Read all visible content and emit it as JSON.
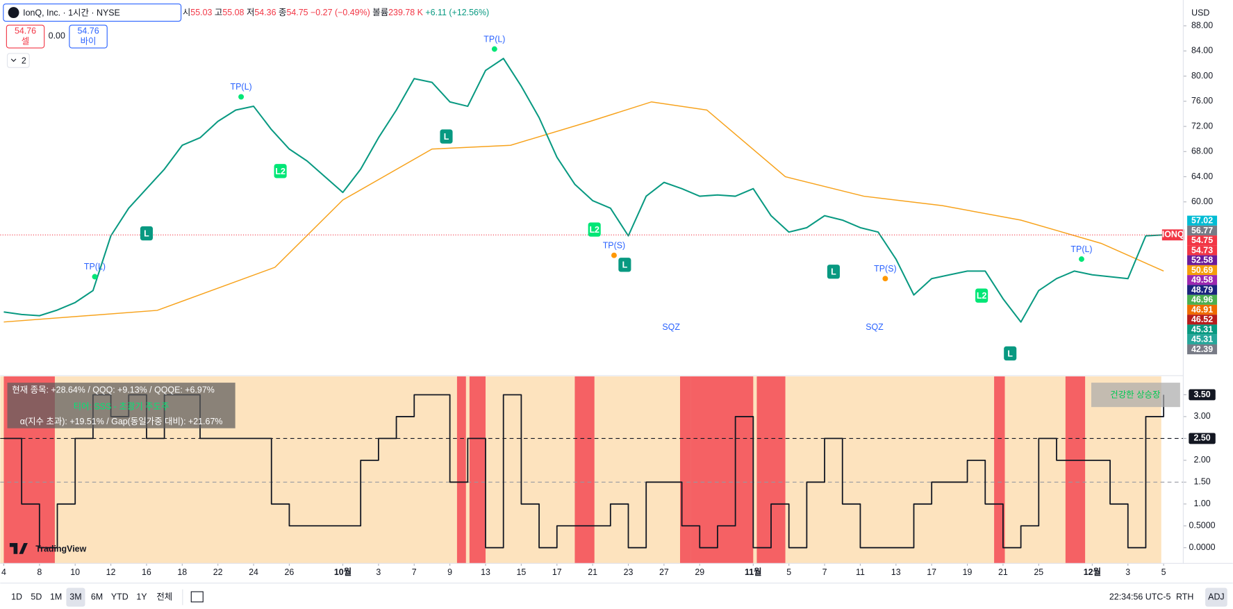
{
  "header": {
    "symbol": "IonQ, Inc. · 1시간 · NYSE",
    "ohlc": [
      {
        "k": "시",
        "v": "55.03"
      },
      {
        "k": "고",
        "v": "55.08"
      },
      {
        "k": "저",
        "v": "54.36"
      },
      {
        "k": "종",
        "v": "54.75"
      }
    ],
    "change": "−0.27 (−0.49%)",
    "volume_label": "볼륨",
    "volume": "239.78 K",
    "gain": "+6.11 (+12.56%)"
  },
  "trade": {
    "sell_price": "54.76",
    "sell": "셀",
    "spread": "0.00",
    "buy_price": "54.76",
    "buy": "바이"
  },
  "indicators_count": "2",
  "currency": "USD",
  "logo": "TradingView",
  "toolbar": {
    "ranges": [
      "1D",
      "5D",
      "1M",
      "3M",
      "6M",
      "YTD",
      "1Y",
      "전체"
    ],
    "active": "3M",
    "time": "22:34:56 UTC-5",
    "session": "RTH",
    "adj": "ADJ"
  },
  "chart_data": [
    {
      "type": "line",
      "symbol_tag": "IONQ",
      "color": "#089981",
      "last_price_line": true,
      "x": [
        0,
        1,
        2,
        3,
        4,
        5,
        6,
        7,
        8,
        9,
        10,
        11,
        12,
        13,
        14,
        15,
        16,
        17,
        18,
        19,
        20,
        21,
        22,
        23,
        24,
        25,
        26,
        27,
        28,
        29,
        30,
        31,
        32,
        33,
        34,
        35,
        36,
        37,
        38,
        39,
        40,
        41,
        42,
        43,
        44,
        45,
        46,
        47,
        48,
        49,
        50,
        51,
        52,
        53,
        54,
        55,
        56,
        57,
        58,
        59,
        60,
        61,
        62,
        63,
        64,
        65
      ],
      "values": [
        42.5,
        42.1,
        41.9,
        42.8,
        44,
        45.9,
        54.6,
        59,
        62.1,
        65.2,
        69,
        70.2,
        72.8,
        74.6,
        75.2,
        71.5,
        68.4,
        66.5,
        64,
        61.5,
        65.2,
        70.2,
        74.6,
        79.6,
        79,
        75.9,
        75.2,
        80.9,
        82.8,
        78.4,
        73.4,
        67.1,
        62.8,
        60.2,
        59,
        54.6,
        60.9,
        63.1,
        62.1,
        60.9,
        61.1,
        60.9,
        62.1,
        57.8,
        55.2,
        55.9,
        57.8,
        57.1,
        55.9,
        55.2,
        50.9,
        45.2,
        47.8,
        48.4,
        49,
        49,
        44.6,
        40.9,
        45.9,
        47.8,
        49,
        48.4,
        48.1,
        47.8,
        54.6,
        54.75
      ],
      "ma_x": [
        0,
        8.6,
        15.2,
        19,
        24,
        28.4,
        32.8,
        36.3,
        39.4,
        43.8,
        48.2,
        52.6,
        57,
        61.5,
        65
      ],
      "ma_values": [
        40.9,
        42.75,
        49.6,
        60.3,
        68.4,
        69,
        72.75,
        75.9,
        74.6,
        64,
        60.9,
        59.4,
        57.1,
        53.4,
        49
      ],
      "ma_color": "#f7a21b",
      "xlim": [
        -0.2,
        66.1
      ],
      "ylim": [
        32.5,
        92.1
      ],
      "yticks": [
        {
          "value": 60,
          "label": "60.00"
        },
        {
          "value": 64,
          "label": "64.00"
        },
        {
          "value": 68,
          "label": "68.00"
        },
        {
          "value": 72,
          "label": "72.00"
        },
        {
          "value": 76,
          "label": "76.00"
        },
        {
          "value": 80,
          "label": "80.00"
        },
        {
          "value": 84,
          "label": "84.00"
        },
        {
          "value": 88,
          "label": "88.00"
        }
      ],
      "price_markers": [
        {
          "value": 57.02,
          "color": "#00bcd4"
        },
        {
          "value": 56.77,
          "color": "#787b86"
        },
        {
          "value": 54.75,
          "color": "#f23645"
        },
        {
          "value": 54.73,
          "color": "#f23645"
        },
        {
          "value": 52.58,
          "color": "#6a1b9a"
        },
        {
          "value": 50.69,
          "color": "#f59e0b"
        },
        {
          "value": 49.58,
          "color": "#9c27b0"
        },
        {
          "value": 48.79,
          "color": "#1a237e"
        },
        {
          "value": 46.96,
          "color": "#4caf50"
        },
        {
          "value": 46.91,
          "color": "#ef6c00"
        },
        {
          "value": 46.52,
          "color": "#b71c1c"
        },
        {
          "value": 45.31,
          "color": "#089981"
        },
        {
          "value": 45.31,
          "color": "#26a69a"
        },
        {
          "value": 42.39,
          "color": "#787b86"
        }
      ],
      "signals": [
        {
          "x": 5.1,
          "value": 49.6,
          "label": "TP(L)",
          "shape": "text",
          "color": "#2962ff",
          "dot": "#00e676"
        },
        {
          "x": 13.3,
          "value": 78.2,
          "label": "TP(L)",
          "shape": "text",
          "color": "#2962ff",
          "dot": "#00e676"
        },
        {
          "x": 27.5,
          "value": 85.8,
          "label": "TP(L)",
          "shape": "text",
          "color": "#2962ff",
          "dot": "#00e676"
        },
        {
          "x": 60.4,
          "value": 52.4,
          "label": "TP(L)",
          "shape": "text",
          "color": "#2962ff",
          "dot": "#00e676"
        },
        {
          "x": 34.2,
          "value": 53,
          "label": "TP(S)",
          "shape": "text",
          "color": "#2962ff",
          "dot": "#ff9800"
        },
        {
          "x": 49.4,
          "value": 49.3,
          "label": "TP(S)",
          "shape": "text",
          "color": "#2962ff",
          "dot": "#ff9800"
        },
        {
          "x": 8,
          "value": 55,
          "label": "L",
          "shape": "badge",
          "color": "#089981"
        },
        {
          "x": 24.8,
          "value": 70.4,
          "label": "L",
          "shape": "badge",
          "color": "#089981"
        },
        {
          "x": 34.8,
          "value": 50,
          "label": "L",
          "shape": "badge",
          "color": "#089981"
        },
        {
          "x": 46.5,
          "value": 48.9,
          "label": "L",
          "shape": "badge",
          "color": "#089981"
        },
        {
          "x": 56.4,
          "value": 35.9,
          "label": "L",
          "shape": "badge",
          "color": "#089981"
        },
        {
          "x": 15.5,
          "value": 64.9,
          "label": "L2",
          "shape": "badge",
          "color": "#00e676"
        },
        {
          "x": 33.1,
          "value": 55.6,
          "label": "L2",
          "shape": "badge",
          "color": "#00e676"
        },
        {
          "x": 54.8,
          "value": 45.1,
          "label": "L2",
          "shape": "badge",
          "color": "#00e676"
        },
        {
          "x": 37.4,
          "value": 40,
          "label": "SQZ",
          "shape": "text",
          "color": "#2962ff"
        },
        {
          "x": 48.8,
          "value": 40,
          "label": "SQZ",
          "shape": "text",
          "color": "#2962ff"
        }
      ]
    },
    {
      "type": "line",
      "step": true,
      "color": "#131722",
      "background": "#fde3be",
      "shade_color": "#f23645",
      "x": [
        0,
        1,
        2,
        3,
        4,
        5,
        6,
        7,
        8,
        9,
        10,
        11,
        12,
        13,
        14,
        15,
        16,
        17,
        18,
        19,
        20,
        21,
        22,
        23,
        24,
        25,
        26,
        27,
        28,
        29,
        30,
        31,
        32,
        33,
        34,
        35,
        36,
        37,
        38,
        39,
        40,
        41,
        42,
        43,
        44,
        45,
        46,
        47,
        48,
        49,
        50,
        51,
        52,
        53,
        54,
        55,
        56,
        57,
        58,
        59,
        60,
        61,
        62,
        63,
        64,
        65
      ],
      "values": [
        2.5,
        1,
        0,
        1,
        2.5,
        3.5,
        3,
        3.5,
        2.5,
        3.5,
        3.5,
        2.5,
        2.5,
        2.5,
        2.5,
        1,
        0.5,
        0.5,
        0.5,
        0.5,
        2,
        2.5,
        3,
        3.5,
        3.5,
        1.5,
        2.5,
        0,
        3.5,
        1,
        0,
        0.5,
        0.5,
        0.5,
        1,
        0,
        1.5,
        1.5,
        0.5,
        0,
        0.5,
        3,
        0,
        1,
        0,
        1.5,
        2.5,
        1,
        0,
        0,
        0,
        1,
        1.5,
        1.5,
        2,
        1,
        0,
        0.5,
        2.5,
        2,
        2,
        2,
        1,
        0,
        3,
        3.5
      ],
      "shaded_ranges": [
        [
          0,
          2.86
        ],
        [
          25.4,
          25.9
        ],
        [
          26.1,
          27
        ],
        [
          32,
          33.1
        ],
        [
          37.9,
          38.5
        ],
        [
          38.5,
          42
        ],
        [
          42.2,
          43.8
        ],
        [
          55.5,
          56.1
        ],
        [
          59.5,
          60.6
        ]
      ],
      "reference_lines": [
        {
          "value": 2.5,
          "color": "#131722"
        },
        {
          "value": 1.5,
          "color": "#9598a1"
        }
      ],
      "xlim": [
        -0.2,
        66.1
      ],
      "ylim": [
        -0.36,
        3.92
      ],
      "yticks": [
        {
          "value": 0,
          "label": "0.0000"
        },
        {
          "value": 0.5,
          "label": "0.5000"
        },
        {
          "value": 1,
          "label": "1.00"
        },
        {
          "value": 1.5,
          "label": "1.50"
        },
        {
          "value": 2,
          "label": "2.00"
        },
        {
          "value": 2.5,
          "label": "2.50"
        },
        {
          "value": 3,
          "label": "3.00"
        },
        {
          "value": 3.5,
          "label": "3.50"
        }
      ],
      "xticks": [
        {
          "value": 0,
          "label": "4"
        },
        {
          "value": 2,
          "label": "8"
        },
        {
          "value": 4,
          "label": "10"
        },
        {
          "value": 6,
          "label": "12"
        },
        {
          "value": 8,
          "label": "16"
        },
        {
          "value": 10,
          "label": "18"
        },
        {
          "value": 12,
          "label": "22"
        },
        {
          "value": 14,
          "label": "24"
        },
        {
          "value": 16,
          "label": "26"
        },
        {
          "value": 19,
          "label": "10월"
        },
        {
          "value": 21,
          "label": "3"
        },
        {
          "value": 23,
          "label": "7"
        },
        {
          "value": 25,
          "label": "9"
        },
        {
          "value": 27,
          "label": "13"
        },
        {
          "value": 29,
          "label": "15"
        },
        {
          "value": 31,
          "label": "17"
        },
        {
          "value": 33,
          "label": "21"
        },
        {
          "value": 35,
          "label": "23"
        },
        {
          "value": 37,
          "label": "27"
        },
        {
          "value": 39,
          "label": "29"
        },
        {
          "value": 42,
          "label": "11월"
        },
        {
          "value": 44,
          "label": "5"
        },
        {
          "value": 46,
          "label": "7"
        },
        {
          "value": 48,
          "label": "11"
        },
        {
          "value": 50,
          "label": "13"
        },
        {
          "value": 52,
          "label": "17"
        },
        {
          "value": 54,
          "label": "19"
        },
        {
          "value": 56,
          "label": "21"
        },
        {
          "value": 58,
          "label": "25"
        },
        {
          "value": 61,
          "label": "12월"
        },
        {
          "value": 63,
          "label": "3"
        },
        {
          "value": 65,
          "label": "5"
        }
      ],
      "info": [
        "현재 종목: +28.64% / QQQ: +9.13% / QQQE: +6.97%",
        "티어: SSS - 초광기 주도주",
        "α(지수 초과): +19.51% / Gap(동일가중 대비): +21.67%"
      ],
      "badge": "건강한 상승장"
    }
  ]
}
